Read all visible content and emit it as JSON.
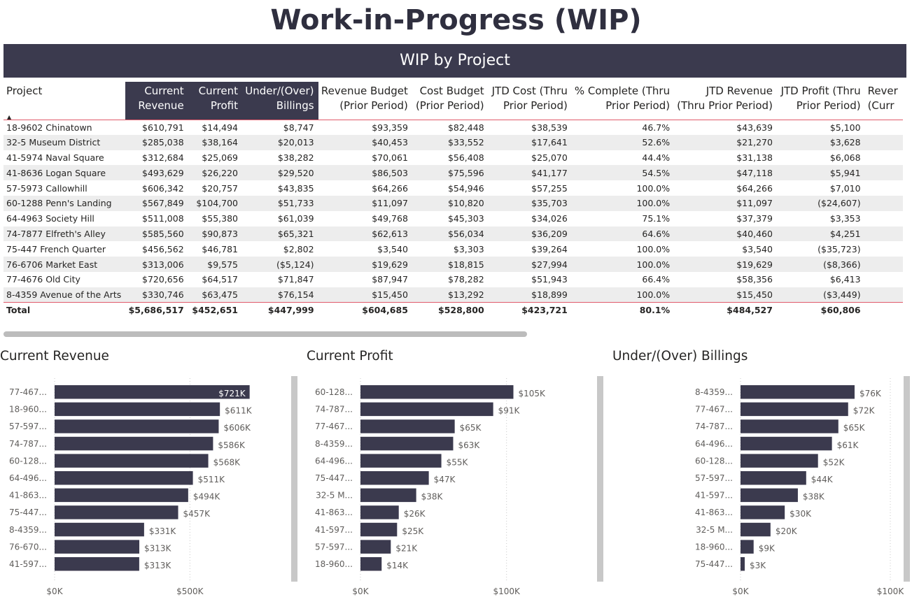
{
  "page": {
    "title": "Work-in-Progress (WIP)"
  },
  "table": {
    "title": "WIP by Project",
    "headers": {
      "project": "Project",
      "c1a": "Current",
      "c1b": "Revenue",
      "c2a": "Current",
      "c2b": "Profit",
      "c3a": "Under/(Over)",
      "c3b": "Billings",
      "c4a": "Revenue Budget",
      "c4b": "(Prior Period)",
      "c5a": "Cost Budget",
      "c5b": "(Prior Period)",
      "c6a": "JTD Cost (Thru",
      "c6b": "Prior Period)",
      "c7a": "% Complete (Thru",
      "c7b": "Prior Period)",
      "c8a": "JTD Revenue",
      "c8b": "(Thru Prior Period)",
      "c9a": "JTD Profit (Thru",
      "c9b": "Prior Period)",
      "c10a": "Rever",
      "c10b": "(Curr"
    },
    "rows": [
      [
        "18-9602 Chinatown",
        "$610,791",
        "$14,494",
        "$8,747",
        "$93,359",
        "$82,448",
        "$38,539",
        "46.7%",
        "$43,639",
        "$5,100"
      ],
      [
        "32-5 Museum District",
        "$285,038",
        "$38,164",
        "$20,013",
        "$40,453",
        "$33,552",
        "$17,641",
        "52.6%",
        "$21,270",
        "$3,628"
      ],
      [
        "41-5974 Naval Square",
        "$312,684",
        "$25,069",
        "$38,282",
        "$70,061",
        "$56,408",
        "$25,070",
        "44.4%",
        "$31,138",
        "$6,068"
      ],
      [
        "41-8636 Logan Square",
        "$493,629",
        "$26,220",
        "$29,520",
        "$86,503",
        "$75,596",
        "$41,177",
        "54.5%",
        "$47,118",
        "$5,941"
      ],
      [
        "57-5973 Callowhill",
        "$606,342",
        "$20,757",
        "$43,835",
        "$64,266",
        "$54,946",
        "$57,255",
        "100.0%",
        "$64,266",
        "$7,010"
      ],
      [
        "60-1288 Penn's Landing",
        "$567,849",
        "$104,700",
        "$51,733",
        "$11,097",
        "$10,820",
        "$35,703",
        "100.0%",
        "$11,097",
        "($24,607)"
      ],
      [
        "64-4963 Society Hill",
        "$511,008",
        "$55,380",
        "$61,039",
        "$49,768",
        "$45,303",
        "$34,026",
        "75.1%",
        "$37,379",
        "$3,353"
      ],
      [
        "74-7877 Elfreth's Alley",
        "$585,560",
        "$90,873",
        "$65,321",
        "$62,613",
        "$56,034",
        "$36,209",
        "64.6%",
        "$40,460",
        "$4,251"
      ],
      [
        "75-447 French Quarter",
        "$456,562",
        "$46,781",
        "$2,802",
        "$3,540",
        "$3,303",
        "$39,264",
        "100.0%",
        "$3,540",
        "($35,723)"
      ],
      [
        "76-6706 Market East",
        "$313,006",
        "$9,575",
        "($5,124)",
        "$19,629",
        "$18,815",
        "$27,994",
        "100.0%",
        "$19,629",
        "($8,366)"
      ],
      [
        "77-4676 Old City",
        "$720,656",
        "$64,517",
        "$71,847",
        "$87,947",
        "$78,282",
        "$51,943",
        "66.4%",
        "$58,356",
        "$6,413"
      ],
      [
        "8-4359 Avenue of the Arts",
        "$330,746",
        "$63,475",
        "$76,154",
        "$15,450",
        "$13,292",
        "$18,899",
        "100.0%",
        "$15,450",
        "($3,449)"
      ]
    ],
    "total": [
      "Total",
      "$5,686,517",
      "$452,651",
      "$447,999",
      "$604,685",
      "$528,800",
      "$423,721",
      "80.1%",
      "$484,527",
      "$60,806"
    ]
  },
  "colors": {
    "bar": "#3b3a4e",
    "header": "#3b3a4e",
    "accent_line": "#e05a6a"
  },
  "chart_data": [
    {
      "type": "bar",
      "orientation": "horizontal",
      "title": "Current Revenue",
      "categories": [
        "77-467...",
        "18-960...",
        "57-597...",
        "74-787...",
        "60-128...",
        "64-496...",
        "41-863...",
        "75-447...",
        "8-4359...",
        "76-670...",
        "41-597..."
      ],
      "values": [
        720656,
        610791,
        606342,
        585560,
        567849,
        511008,
        493629,
        456562,
        330746,
        313006,
        312684
      ],
      "labels": [
        "$721K",
        "$611K",
        "$606K",
        "$586K",
        "$568K",
        "$511K",
        "$494K",
        "$457K",
        "$331K",
        "$313K",
        "$313K"
      ],
      "xlim": [
        0,
        750000
      ],
      "ticks": [
        0,
        500000
      ],
      "tick_labels": [
        "$0K",
        "$500K"
      ]
    },
    {
      "type": "bar",
      "orientation": "horizontal",
      "title": "Current Profit",
      "categories": [
        "60-128...",
        "74-787...",
        "77-467...",
        "8-4359...",
        "64-496...",
        "75-447...",
        "32-5 M...",
        "41-863...",
        "41-597...",
        "57-597...",
        "18-960..."
      ],
      "values": [
        104700,
        90873,
        64517,
        63475,
        55380,
        46781,
        38164,
        26220,
        25069,
        20757,
        14494
      ],
      "labels": [
        "$105K",
        "$91K",
        "$65K",
        "$63K",
        "$55K",
        "$47K",
        "$38K",
        "$26K",
        "$25K",
        "$21K",
        "$14K"
      ],
      "xlim": [
        0,
        138000
      ],
      "ticks": [
        0,
        100000
      ],
      "tick_labels": [
        "$0K",
        "$100K"
      ]
    },
    {
      "type": "bar",
      "orientation": "horizontal",
      "title": "Under/(Over) Billings",
      "categories": [
        "8-4359...",
        "77-467...",
        "74-787...",
        "64-496...",
        "60-128...",
        "57-597...",
        "41-597...",
        "41-863...",
        "32-5 M...",
        "18-960...",
        "75-447..."
      ],
      "values": [
        76154,
        71847,
        65321,
        61039,
        51733,
        43835,
        38282,
        29520,
        20013,
        8747,
        2802
      ],
      "labels": [
        "$76K",
        "$72K",
        "$65K",
        "$61K",
        "$52K",
        "$44K",
        "$38K",
        "$30K",
        "$20K",
        "$9K",
        "$3K"
      ],
      "xlim": [
        0,
        100000
      ],
      "ticks": [
        0,
        100000
      ],
      "tick_labels": [
        "$0K",
        "$100K"
      ]
    }
  ]
}
